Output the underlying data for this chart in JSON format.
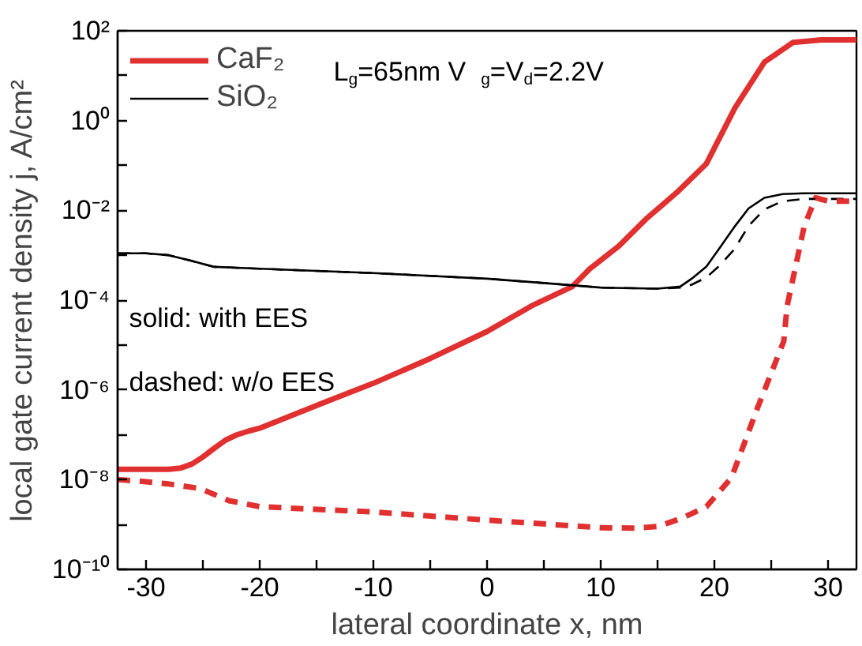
{
  "chart_data": {
    "type": "line",
    "xlabel": "lateral coordinate x, nm",
    "ylabel": "local gate current density j, A/cm²",
    "log": "y",
    "grid": false,
    "legend": "top left",
    "xlim": [
      -32.5,
      32.5
    ],
    "xticks": [
      -30,
      {
        "value": -25,
        "label": null
      },
      -20,
      {
        "value": -15,
        "label": null
      },
      -10,
      {
        "value": -5,
        "label": null
      },
      0,
      {
        "value": 5,
        "label": null
      },
      10,
      {
        "value": 15,
        "label": null
      },
      20,
      {
        "value": 25,
        "label": null
      },
      30
    ],
    "ylim": [
      1e-10,
      100
    ],
    "yticks": [
      {
        "value": 1e-10,
        "label": "10⁻¹⁰"
      },
      {
        "value": 1e-09,
        "label": null
      },
      {
        "value": 1e-08,
        "label": "10⁻⁸"
      },
      {
        "value": 1e-07,
        "label": null
      },
      {
        "value": 1e-06,
        "label": "10⁻⁶"
      },
      {
        "value": 1e-05,
        "label": null
      },
      {
        "value": 0.0001,
        "label": "10⁻⁴"
      },
      {
        "value": 0.001,
        "label": null
      },
      {
        "value": 0.01,
        "label": "10⁻²"
      },
      {
        "value": 0.1,
        "label": null
      },
      {
        "value": 1,
        "label": "10⁰"
      },
      {
        "value": 10,
        "label": null
      },
      {
        "value": 100,
        "label": "10²"
      }
    ],
    "annotations": [
      "L$_{g}$=65nm   V$_{g}$=V$_{d}$=2.2V",
      "solid: with EES",
      "dashed: w/o EES"
    ],
    "series": [
      {
        "name": "CaF₂",
        "color": "#e03030",
        "line_style": "solid",
        "x": [
          -32.5,
          -30,
          -28,
          -27,
          -26,
          -25,
          -24,
          -23,
          -22,
          -21,
          -20,
          -15,
          -10,
          -5,
          0,
          3.9,
          7.5,
          9.05,
          11.6,
          14.1,
          16.7,
          19.3,
          21.8,
          24.4,
          26.9,
          29.4,
          32.5
        ],
        "values": [
          1.7e-08,
          1.7e-08,
          1.7e-08,
          1.8e-08,
          2.2e-08,
          3.2e-08,
          5e-08,
          7.6e-08,
          1e-07,
          1.2e-07,
          1.4e-07,
          4.5e-07,
          1.4e-06,
          5e-06,
          2e-05,
          7.4e-05,
          0.0002,
          0.0005,
          0.0016,
          0.0068,
          0.025,
          0.11,
          1.9,
          20,
          55,
          63,
          63
        ]
      },
      {
        "name": "SiO₂",
        "color": "#000000",
        "line_style": "solid",
        "x": [
          -32.5,
          -30,
          -28,
          -26,
          -24,
          -20,
          -10,
          0,
          5,
          10,
          15,
          17,
          18,
          19.3,
          20.5,
          21.8,
          23,
          24.4,
          26,
          28,
          32.5
        ],
        "values": [
          0.0011,
          0.0011,
          0.001,
          0.00075,
          0.00055,
          0.0005,
          0.0004,
          0.0003,
          0.00024,
          0.00019,
          0.00018,
          0.0002,
          0.0003,
          0.00056,
          0.0015,
          0.0044,
          0.011,
          0.019,
          0.023,
          0.024,
          0.024
        ]
      },
      {
        "color": "#000000",
        "line_style": "dashed",
        "x": [
          -32.5,
          -30,
          -28,
          -26,
          -24,
          -20,
          -10,
          0,
          5,
          10,
          15,
          17,
          18,
          19.3,
          20.5,
          21.8,
          23,
          24.4,
          26,
          28,
          32.5
        ],
        "values": [
          0.0011,
          0.0011,
          0.001,
          0.00075,
          0.00055,
          0.0005,
          0.0004,
          0.0003,
          0.00024,
          0.00019,
          0.00018,
          0.00019,
          0.00022,
          0.00032,
          0.0006,
          0.0014,
          0.0045,
          0.0105,
          0.016,
          0.018,
          0.018
        ]
      },
      {
        "color": "#e03030",
        "line_style": "dashed",
        "x": [
          -32.5,
          -30,
          -28,
          -25.2,
          -22.7,
          -20,
          -10,
          0,
          10,
          13,
          15,
          17.2,
          19.3,
          21.5,
          23.8,
          26.1,
          26.4,
          27.9,
          28.9,
          30,
          32.5
        ],
        "values": [
          1e-08,
          9e-09,
          8e-09,
          6.3e-09,
          3.4e-09,
          2.5e-09,
          1.9e-09,
          1.25e-09,
          8.5e-10,
          8.3e-10,
          9e-10,
          1.4e-09,
          2.5e-09,
          1.1e-08,
          4e-07,
          1.2e-05,
          7.4e-05,
          0.0044,
          0.019,
          0.016,
          0.016
        ]
      }
    ]
  }
}
